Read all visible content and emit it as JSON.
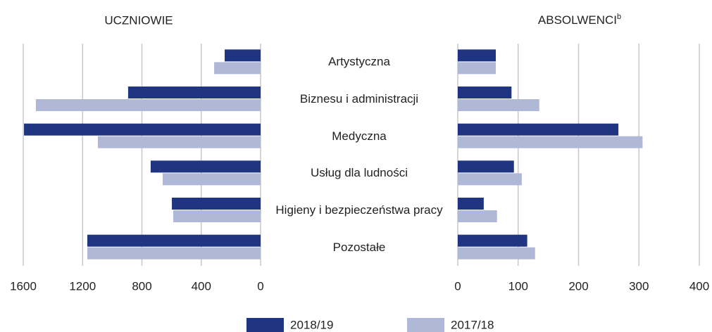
{
  "chart_data": [
    {
      "type": "bar",
      "orientation": "horizontal",
      "title": "UCZNIOWIE",
      "categories": [
        "Artystyczna",
        "Biznesu i administracji",
        "Medyczna",
        "Usług dla ludności",
        "Higieny i bezpieczeństwa pracy",
        "Pozostałe"
      ],
      "series": [
        {
          "name": "2018/19",
          "color": "#1f3582",
          "values": [
            242,
            893,
            1595,
            741,
            598,
            1168
          ]
        },
        {
          "name": "2017/18",
          "color": "#b0b8d8",
          "values": [
            313,
            1515,
            1097,
            660,
            589,
            1168
          ]
        }
      ],
      "xlim": [
        1600,
        0
      ],
      "xticks": [
        1600,
        1200,
        800,
        400,
        0
      ],
      "grid": true
    },
    {
      "type": "bar",
      "orientation": "horizontal",
      "title": "ABSOLWENCI",
      "title_superscript": "b",
      "series": [
        {
          "color": "#1f3582",
          "values": [
            63,
            89,
            266,
            93,
            43,
            115
          ]
        },
        {
          "color": "#b0b8d8",
          "values": [
            63,
            135,
            306,
            106,
            65,
            128
          ]
        }
      ],
      "xlim": [
        0,
        400
      ],
      "xticks": [
        0,
        100,
        200,
        300,
        400
      ],
      "grid": true
    }
  ]
}
